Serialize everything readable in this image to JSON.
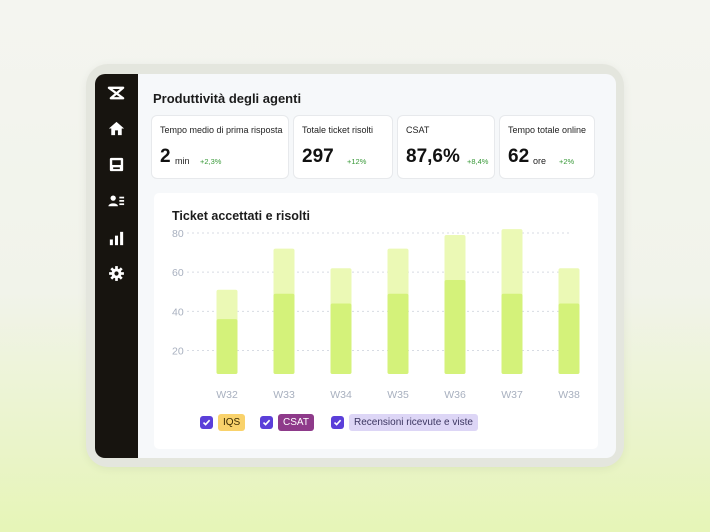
{
  "page_title": "Produttività degli agenti",
  "nav": [
    {
      "icon": "zendesk-logo-icon"
    },
    {
      "icon": "home-icon"
    },
    {
      "icon": "inbox-icon"
    },
    {
      "icon": "contacts-icon"
    },
    {
      "icon": "reports-chart-icon"
    },
    {
      "icon": "settings-gear-icon"
    }
  ],
  "cards": [
    {
      "label": "Tempo medio di prima risposta",
      "value": "2",
      "unit": "min",
      "delta": "+2,3%"
    },
    {
      "label": "Totale ticket risolti",
      "value": "297",
      "unit": "",
      "delta": "+12%"
    },
    {
      "label": "CSAT",
      "value": "87,6%",
      "unit": "",
      "delta": "+8,4%"
    },
    {
      "label": "Tempo totale online",
      "value": "62",
      "unit": "ore",
      "delta": "+2%"
    }
  ],
  "chart_data": {
    "type": "bar",
    "title": "Ticket accettati e risolti",
    "categories": [
      "W32",
      "W33",
      "W34",
      "W35",
      "W36",
      "W37",
      "W38"
    ],
    "series": [
      {
        "values": [
          36,
          49,
          44,
          49,
          56,
          49,
          44
        ],
        "color": "#d4f27a"
      },
      {
        "values": [
          51,
          72,
          62,
          72,
          79,
          82,
          62
        ],
        "color": "#ebf9b5"
      }
    ],
    "ylim": [
      8,
      80
    ],
    "yticks": [
      80,
      60,
      40,
      20
    ],
    "grid": true
  },
  "legend": [
    {
      "label": "IQS",
      "checked": true,
      "bg": "#f9d26b",
      "fg": "#3a2a00"
    },
    {
      "label": "CSAT",
      "checked": true,
      "bg": "#8e3a8a",
      "fg": "#ffffff"
    },
    {
      "label": "Recensioni ricevute e viste",
      "checked": true,
      "bg": "#ddd6f6",
      "fg": "#3b3560"
    }
  ],
  "colors": {
    "accent": "#5b3fd9",
    "sidebar": "#17140f",
    "positive": "#3a9a3a"
  }
}
